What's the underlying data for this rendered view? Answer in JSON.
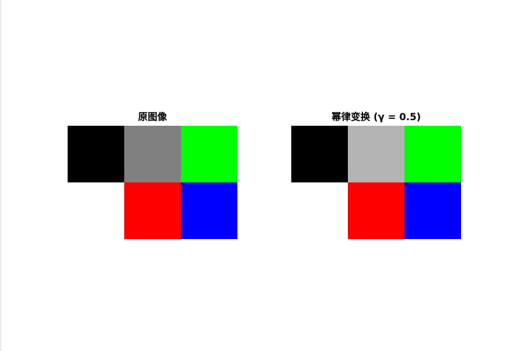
{
  "chart_data": [
    {
      "type": "heatmap",
      "title": "原图像",
      "rows": 2,
      "cols": 3,
      "pixels": [
        [
          "#000000",
          "#808080",
          "#00ff00"
        ],
        [
          "#ffffff",
          "#ff0000",
          "#0000ff"
        ]
      ]
    },
    {
      "type": "heatmap",
      "title": "幂律变换 (γ = 0.5)",
      "rows": 2,
      "cols": 3,
      "pixels": [
        [
          "#000000",
          "#b4b4b4",
          "#00ff00"
        ],
        [
          "#ffffff",
          "#ff0000",
          "#0000ff"
        ]
      ]
    }
  ]
}
